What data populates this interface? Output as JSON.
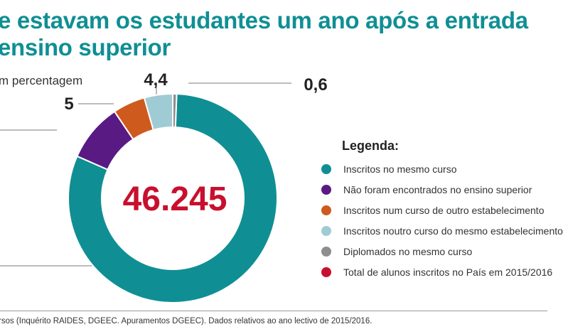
{
  "title_lines": [
    "e estavam os estudantes um ano após a entrada",
    "ensino superior"
  ],
  "subtitle": "m percentagem",
  "chart_data": {
    "type": "pie",
    "center_label": "46.245",
    "slices": [
      {
        "label": "Inscritos no mesmo curso",
        "value": 81.0,
        "color": "#0f8f94",
        "value_label": ""
      },
      {
        "label": "Não foram encontrados no ensino superior",
        "value": 9.0,
        "color": "#5a1a84",
        "value_label": ""
      },
      {
        "label": "Inscritos num curso de outro estabelecimento",
        "value": 5.0,
        "color": "#cf5a1e",
        "value_label": "5"
      },
      {
        "label": "Inscritos noutro curso do mesmo estabelecimento",
        "value": 4.4,
        "color": "#9fcbd4",
        "value_label": "4,4"
      },
      {
        "label": "Diplomados no mesmo curso",
        "value": 0.6,
        "color": "#8e8e8e",
        "value_label": "0,6"
      }
    ]
  },
  "legend": {
    "title": "Legenda:",
    "items": [
      {
        "label": "Inscritos no mesmo curso",
        "color": "#0f8f94"
      },
      {
        "label": "Não foram encontrados no ensino superior",
        "color": "#5a1a84"
      },
      {
        "label": "Inscritos num curso de outro estabelecimento",
        "color": "#cf5a1e"
      },
      {
        "label": "Inscritos noutro curso do mesmo estabelecimento",
        "color": "#9fcbd4"
      },
      {
        "label": "Diplomados no mesmo curso",
        "color": "#8e8e8e"
      },
      {
        "label": "Total de alunos inscritos no País em 2015/2016",
        "color": "#c8102e"
      }
    ]
  },
  "source": "rsos (Inquérito RAIDES, DGEEC. Apuramentos DGEEC). Dados relativos ao ano lectivo de 2015/2016."
}
